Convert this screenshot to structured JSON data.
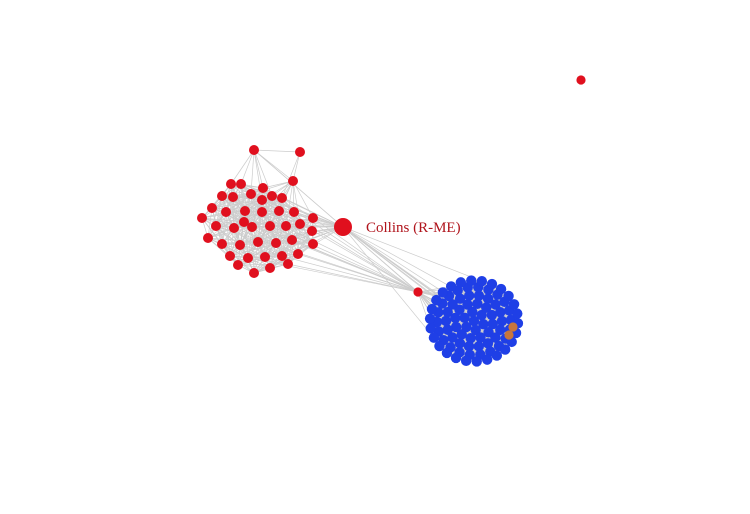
{
  "graph": {
    "highlight_label": "Collins (R-ME)",
    "party_colors": {
      "republican": "#e0101e",
      "democrat": "#1f3fe6",
      "independent": "#c8763c"
    },
    "edge_color": "#cccccc",
    "label_color": "#b0141c"
  }
}
